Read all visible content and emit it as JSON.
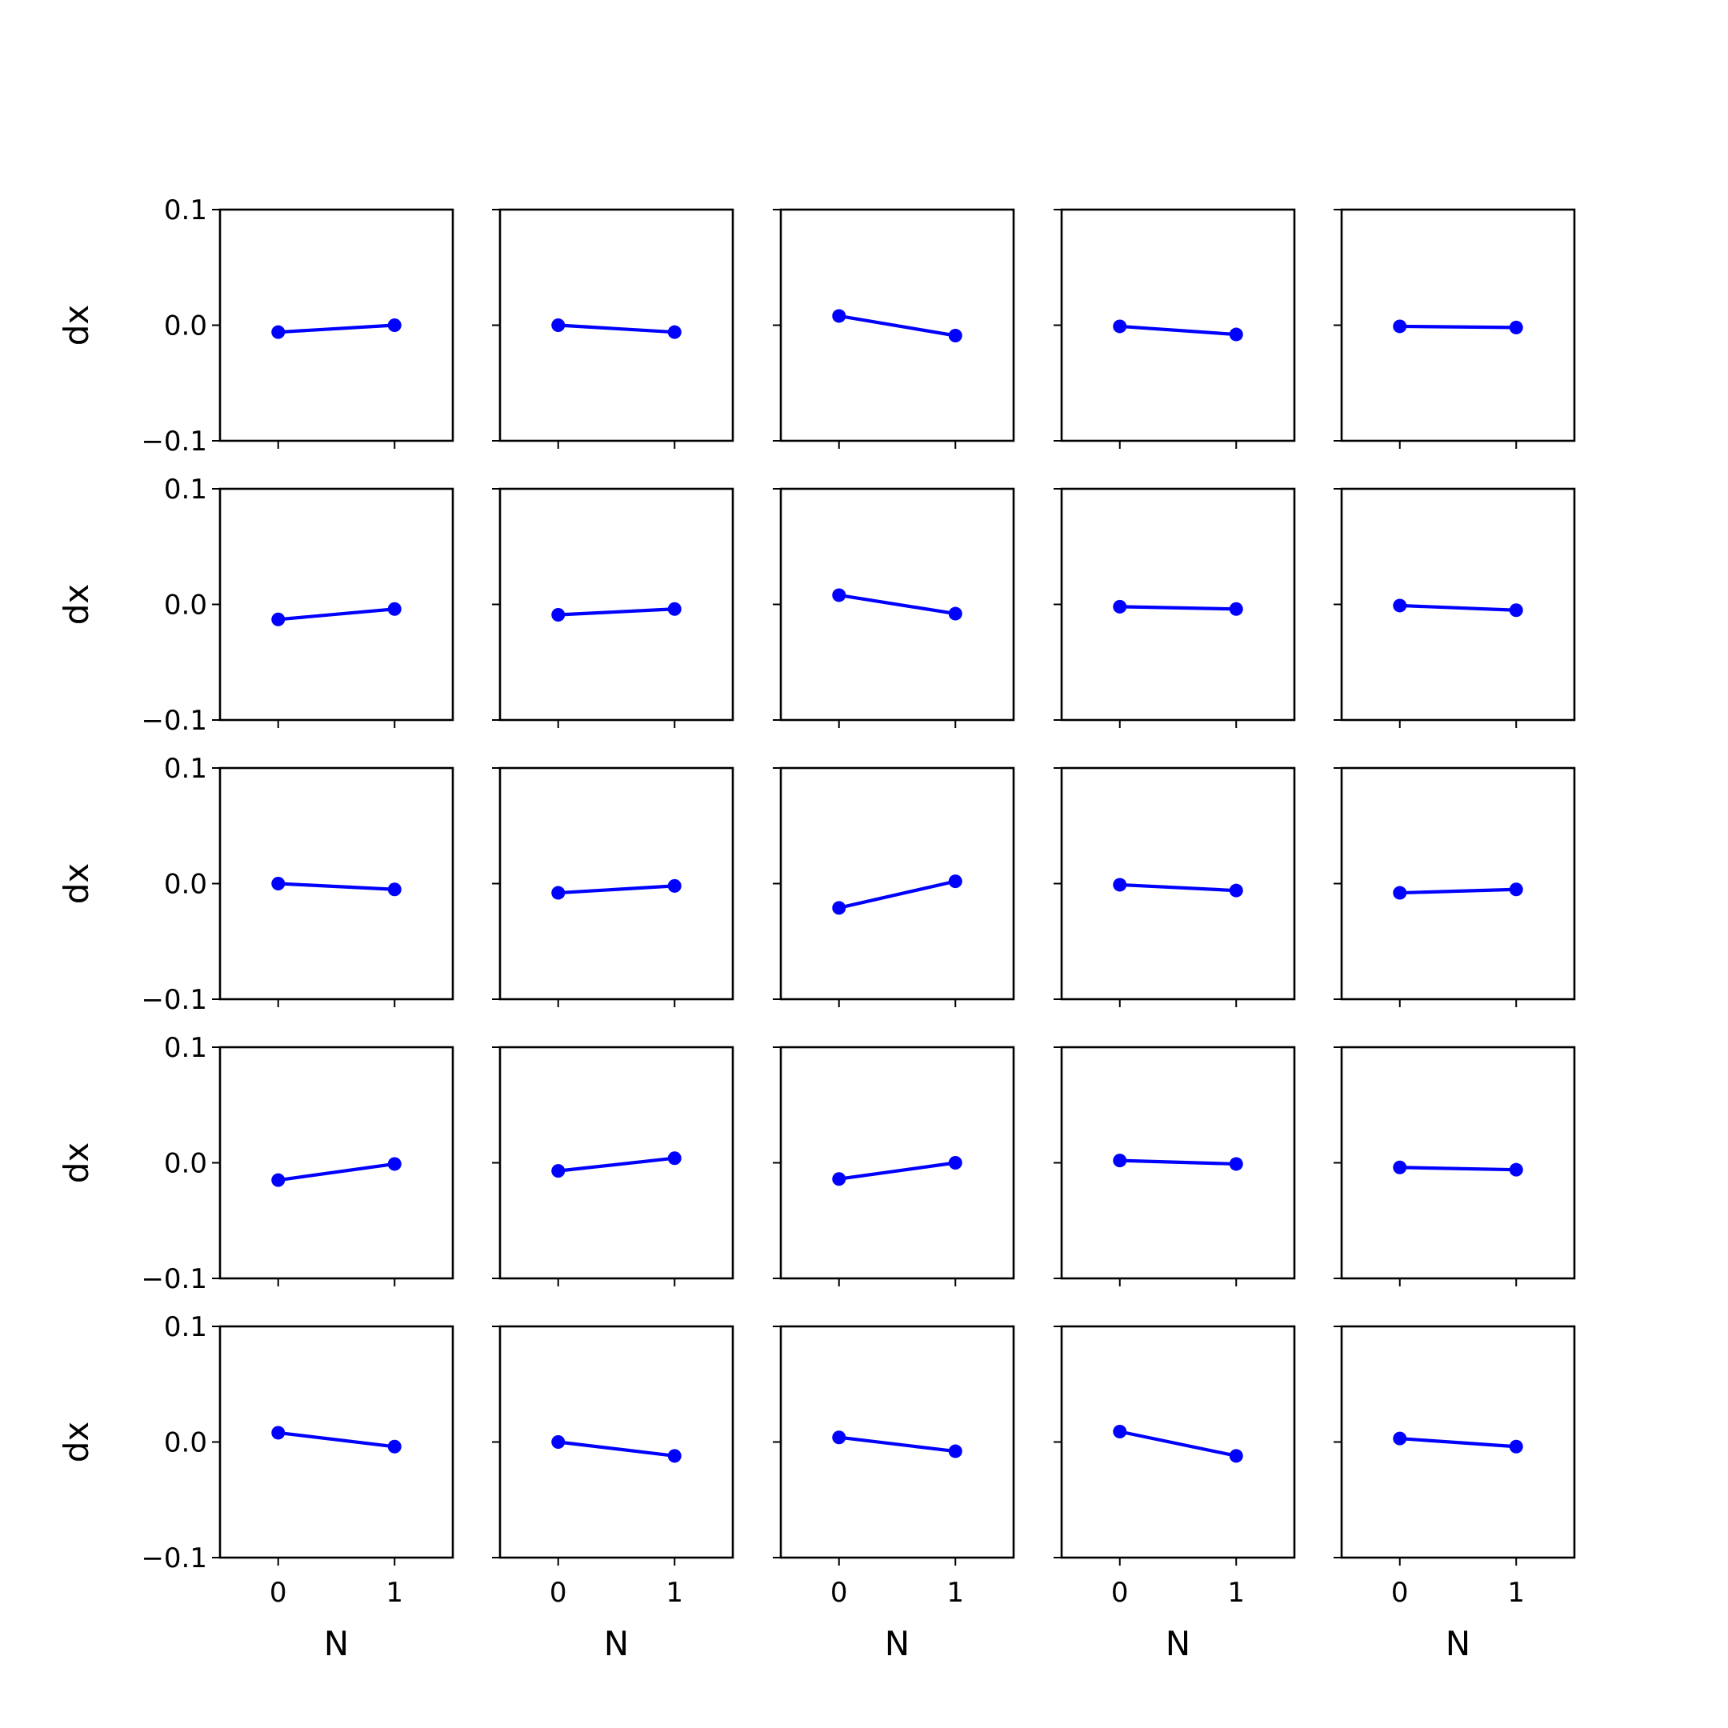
{
  "figure": {
    "background": "#ffffff"
  },
  "style": {
    "line_color": "#0000ff",
    "axis_color": "#000000"
  },
  "chart_data": {
    "type": "line",
    "layout": "small-multiples",
    "rows": 5,
    "cols": 5,
    "shared_x": true,
    "shared_y": true,
    "xlabel": "N",
    "ylabel": "dx",
    "xlim": [
      -0.5,
      1.5
    ],
    "ylim": [
      -0.1,
      0.1
    ],
    "xticks": [
      0,
      1
    ],
    "xtick_labels": [
      "0",
      "1"
    ],
    "yticks": [
      0.1,
      0.0,
      -0.1
    ],
    "ytick_labels": [
      "0.1",
      "0.0",
      "−0.1"
    ],
    "grid": false,
    "markers": "circle",
    "x": [
      0,
      1
    ],
    "panels": [
      [
        [
          -0.006,
          0.0
        ],
        [
          0.0,
          -0.006
        ],
        [
          0.008,
          -0.009
        ],
        [
          -0.001,
          -0.008
        ],
        [
          -0.001,
          -0.002
        ]
      ],
      [
        [
          -0.013,
          -0.004
        ],
        [
          -0.009,
          -0.004
        ],
        [
          0.008,
          -0.008
        ],
        [
          -0.002,
          -0.004
        ],
        [
          -0.001,
          -0.005
        ]
      ],
      [
        [
          0.0,
          -0.005
        ],
        [
          -0.008,
          -0.002
        ],
        [
          -0.021,
          0.002
        ],
        [
          -0.001,
          -0.006
        ],
        [
          -0.008,
          -0.005
        ]
      ],
      [
        [
          -0.015,
          -0.001
        ],
        [
          -0.007,
          0.004
        ],
        [
          -0.014,
          0.0
        ],
        [
          0.002,
          -0.001
        ],
        [
          -0.004,
          -0.006
        ]
      ],
      [
        [
          0.008,
          -0.004
        ],
        [
          0.0,
          -0.012
        ],
        [
          0.004,
          -0.008
        ],
        [
          0.009,
          -0.012
        ],
        [
          0.003,
          -0.004
        ]
      ]
    ]
  }
}
